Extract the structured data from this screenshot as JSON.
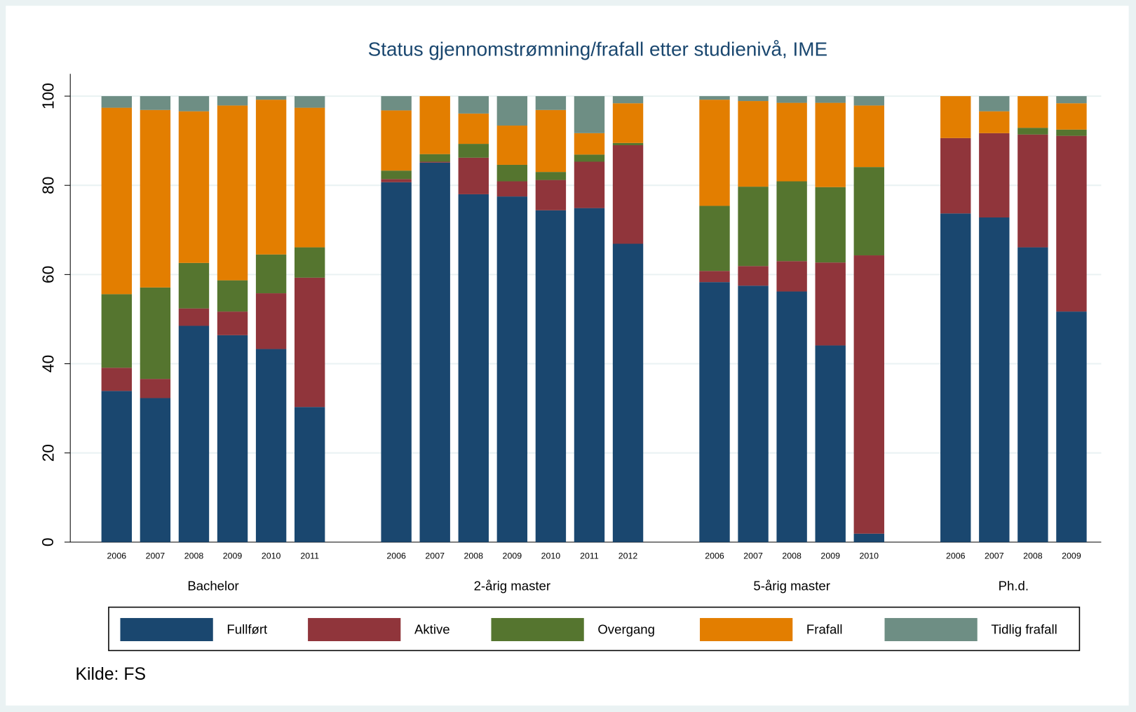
{
  "chart_data": {
    "type": "stacked_bar",
    "title": "Status gjennomstrømning/frafall etter studienivå, IME",
    "source": "Kilde: FS",
    "groups": [
      {
        "name": "Bachelor",
        "categories": [
          "2006",
          "2007",
          "2008",
          "2009",
          "2010",
          "2011"
        ]
      },
      {
        "name": "2-årig master",
        "categories": [
          "2006",
          "2007",
          "2008",
          "2009",
          "2010",
          "2011",
          "2012"
        ]
      },
      {
        "name": "5-årig master",
        "categories": [
          "2006",
          "2007",
          "2008",
          "2009",
          "2010"
        ]
      },
      {
        "name": "Ph.d.",
        "categories": [
          "2006",
          "2007",
          "2008",
          "2009"
        ]
      }
    ],
    "series": [
      {
        "name": "Fullført",
        "color": "#1a476f",
        "values": [
          33.9,
          32.3,
          48.5,
          46.4,
          43.3,
          30.3,
          80.7,
          85.1,
          78.0,
          77.5,
          74.4,
          74.9,
          66.9,
          58.3,
          57.5,
          56.2,
          44.1,
          1.9,
          73.7,
          72.8,
          66.1,
          51.7
        ]
      },
      {
        "name": "Aktive",
        "color": "#90353b",
        "values": [
          5.2,
          4.3,
          3.9,
          5.3,
          12.5,
          29.0,
          0.7,
          0.2,
          8.2,
          3.4,
          6.8,
          10.4,
          22.1,
          2.5,
          4.4,
          6.8,
          18.6,
          62.4,
          16.9,
          18.9,
          25.3,
          39.4
        ]
      },
      {
        "name": "Overgang",
        "color": "#55752f",
        "values": [
          16.5,
          20.5,
          10.2,
          7.0,
          8.7,
          6.8,
          1.9,
          1.7,
          3.1,
          3.7,
          1.8,
          1.6,
          0.5,
          14.6,
          17.8,
          17.9,
          16.9,
          19.8,
          0,
          0,
          1.5,
          1.4
        ]
      },
      {
        "name": "Frafall",
        "color": "#e37e00",
        "values": [
          41.8,
          39.8,
          34.0,
          39.2,
          34.7,
          31.3,
          13.5,
          13.0,
          6.8,
          8.8,
          13.9,
          4.8,
          8.9,
          23.8,
          19.2,
          17.6,
          18.9,
          13.8,
          9.4,
          4.9,
          7.1,
          5.9
        ]
      },
      {
        "name": "Tidlig frafall",
        "color": "#6e8e84",
        "values": [
          2.6,
          3.1,
          3.4,
          2.1,
          0.8,
          2.6,
          3.2,
          0,
          3.9,
          6.6,
          3.1,
          8.3,
          1.6,
          0.8,
          1.1,
          1.5,
          1.5,
          2.1,
          0,
          3.4,
          0,
          1.6
        ]
      }
    ],
    "ylim": [
      0,
      105
    ],
    "yticks": [
      0,
      20,
      40,
      60,
      80,
      100
    ],
    "grid": true
  }
}
